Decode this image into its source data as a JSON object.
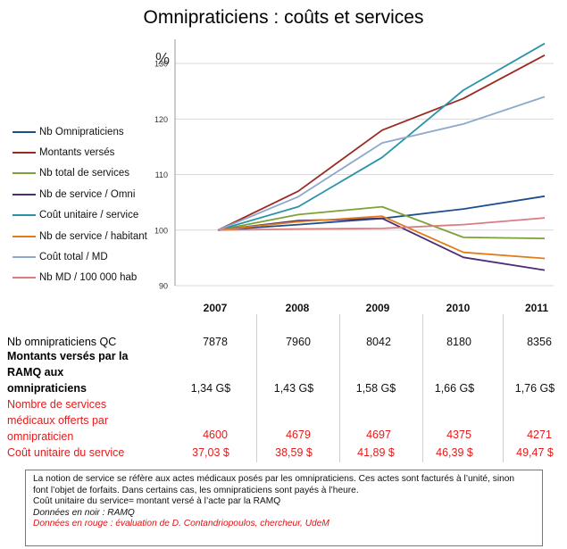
{
  "title": "Omnipraticiens : coûts et services",
  "chart_data": {
    "type": "line",
    "ylabel": "%",
    "ylim": [
      90,
      135
    ],
    "yticks": [
      90,
      100,
      110,
      120,
      130
    ],
    "x": [
      "2007",
      "2008",
      "2009",
      "2010",
      "2011"
    ],
    "grid": true,
    "legend_position": "left",
    "series": [
      {
        "name": "Nb Omnipraticiens",
        "color": "#1f4e8c",
        "values": [
          100,
          101.0,
          102.1,
          103.8,
          106.1
        ]
      },
      {
        "name": "Montants versés",
        "color": "#9b2a22",
        "values": [
          100,
          107.0,
          118.0,
          123.7,
          131.5
        ]
      },
      {
        "name": "Nb total de services",
        "color": "#7aa334",
        "values": [
          100,
          102.8,
          104.2,
          98.7,
          98.5
        ]
      },
      {
        "name": "Nb de service / Omni",
        "color": "#4b2d7a",
        "values": [
          100,
          101.7,
          102.1,
          95.1,
          92.8
        ]
      },
      {
        "name": "Coût unitaire / service",
        "color": "#2a93a8",
        "values": [
          100,
          104.2,
          113.1,
          125.2,
          133.6
        ]
      },
      {
        "name": "Nb de service / habitant",
        "color": "#e07d1a",
        "values": [
          100,
          101.5,
          102.5,
          96.0,
          94.9
        ]
      },
      {
        "name": "Coût total / MD",
        "color": "#8ea7cc",
        "values": [
          100,
          106.0,
          115.7,
          119.1,
          124.0
        ]
      },
      {
        "name": "Nb MD / 100 000 hab",
        "color": "#d97d80",
        "values": [
          100,
          100.2,
          100.3,
          101.0,
          102.2
        ]
      }
    ]
  },
  "table": {
    "years": [
      "2007",
      "2008",
      "2009",
      "2010",
      "2011"
    ],
    "rows": [
      {
        "label": "Nb omnipraticiens  QC",
        "values": [
          "7878",
          "7960",
          "8042",
          "8180",
          "8356"
        ]
      },
      {
        "label_lines": [
          "Montants versés par la",
          "RAMQ aux",
          "omnipraticiens"
        ],
        "values": [
          "1,34 G$",
          "1,43 G$",
          "1,58 G$",
          "1,66 G$",
          "1,76 G$"
        ]
      },
      {
        "label_lines": [
          "Nombre de services",
          "médicaux offerts par",
          "omnipraticien"
        ],
        "values": [
          "4600",
          "4679",
          "4697",
          "4375",
          "4271"
        ]
      },
      {
        "label": "Coût unitaire  du service",
        "values": [
          "37,03 $",
          "38,59 $",
          "41,89 $",
          "46,39 $",
          "49,47 $"
        ]
      }
    ]
  },
  "notes": {
    "line1": "La notion de service se réfère aux actes médicaux posés par les omnipraticiens. Ces actes sont facturés à l’unité, sinon",
    "line2": "font l’objet de forfaits. Dans certains cas, les omnipraticiens sont payés à l’heure.",
    "line3": "Coût unitaire du service= montant versé à l’acte par la RAMQ",
    "line4": "Données en noir : RAMQ",
    "line5": "Données en rouge : évaluation de D. Contandriopoulos, chercheur, UdeM"
  }
}
